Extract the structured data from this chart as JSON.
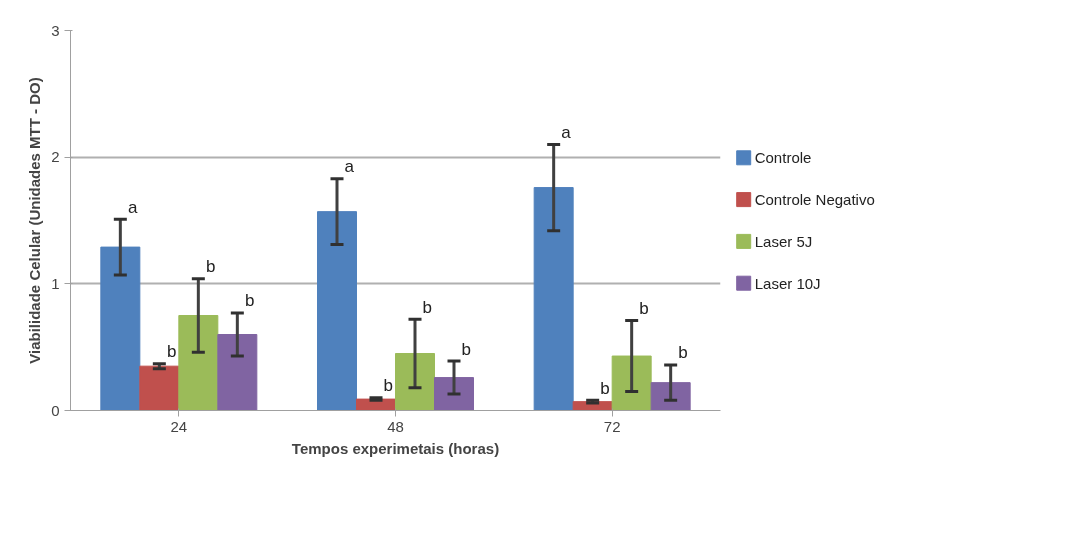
{
  "chart_data": {
    "type": "bar",
    "xlabel": "Tempos experimetais (horas)",
    "ylabel": "Viabilidade Celular (Unidades MTT - DO)",
    "categories": [
      "24",
      "48",
      "72"
    ],
    "ylim": [
      0,
      3
    ],
    "yticks": [
      0,
      1,
      2,
      3
    ],
    "grid": "y",
    "legend": "right",
    "series": [
      {
        "name": "Controle",
        "color": "#4f81bd",
        "values": [
          1.29,
          1.57,
          1.76
        ],
        "errors": [
          0.22,
          0.26,
          0.34
        ],
        "value_labels": [
          "a",
          "a",
          "a"
        ]
      },
      {
        "name": "Controle Negativo",
        "color": "#c0504d",
        "values": [
          0.35,
          0.09,
          0.07
        ],
        "errors": [
          0.02,
          0.01,
          0.01
        ],
        "value_labels": [
          "b",
          "b",
          "b"
        ]
      },
      {
        "name": "Laser 5J",
        "color": "#9bbb59",
        "values": [
          0.75,
          0.45,
          0.43
        ],
        "errors": [
          0.29,
          0.27,
          0.28
        ],
        "value_labels": [
          "b",
          "b",
          "b"
        ]
      },
      {
        "name": "Laser 10J",
        "color": "#8064a2",
        "values": [
          0.6,
          0.26,
          0.22
        ],
        "errors": [
          0.17,
          0.13,
          0.14
        ],
        "value_labels": [
          "b",
          "b",
          "b"
        ]
      }
    ]
  }
}
